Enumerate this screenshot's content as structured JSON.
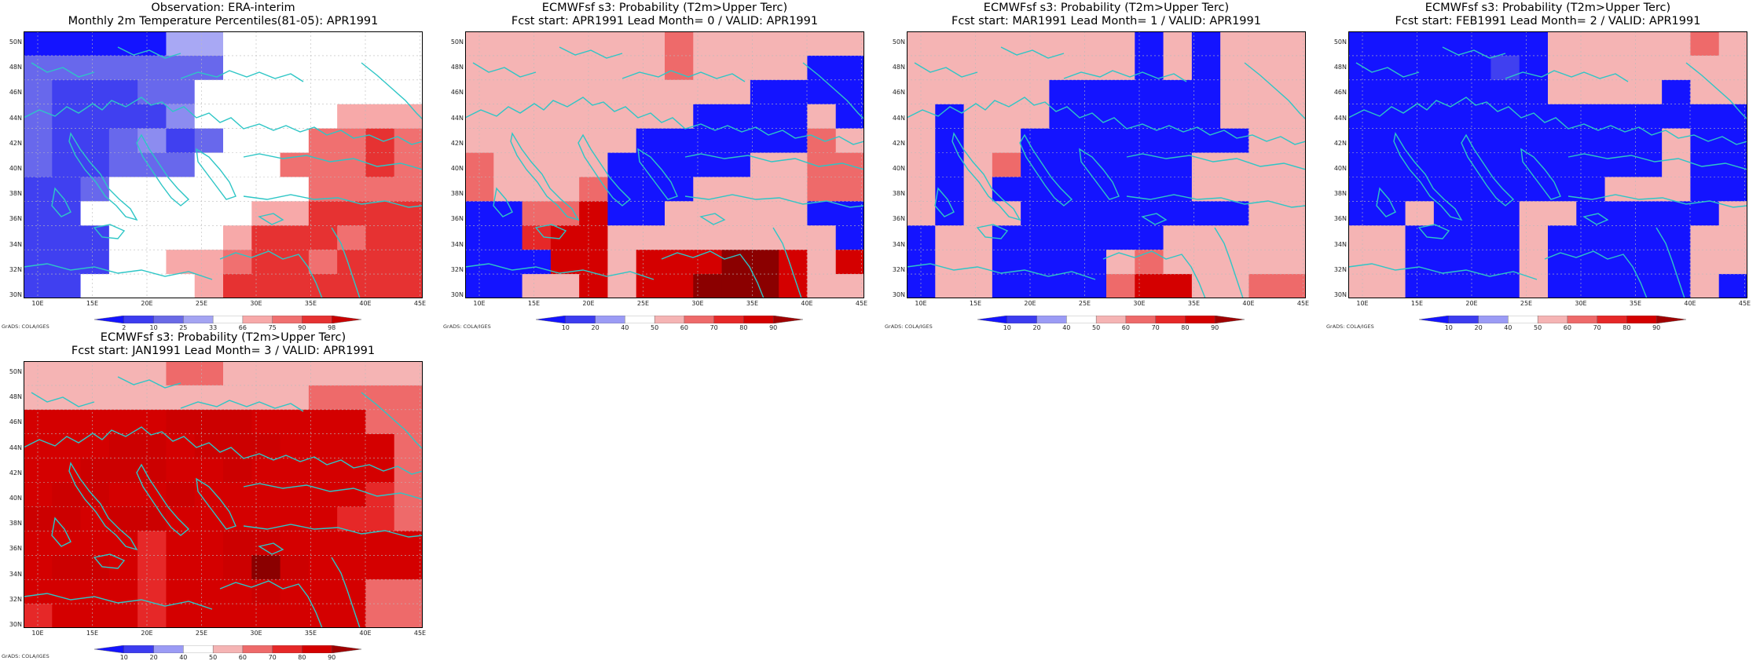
{
  "panels": [
    {
      "title1": "Observation: ERA-interim",
      "title2": "Monthly 2m Temperature Percentiles(81-05): APR1991",
      "colorbar": {
        "labels": [
          "2",
          "10",
          "25",
          "33",
          "66",
          "75",
          "90",
          "98"
        ],
        "colors": [
          "#1414ff",
          "#3c3cf0",
          "#6a6ae6",
          "#a4a4f2",
          "#ffffff",
          "#f7a9a9",
          "#f07070",
          "#e63232",
          "#c80000"
        ]
      },
      "grid": [
        "B B B B B A A F F F F F F F",
        "D D D D D D D F F F F F F F",
        "D C C C D D F F F F F F F F",
        "D C C C C E F F F F F G H H",
        "D C C D E C D F F F I I J I",
        "D C C D D D F F F I I I J I",
        "C C D F F F F F F F I I I I",
        "C C F F F F F F G G J J J J",
        "C C C F F F F G J J J I J J",
        "C C C F F G G I J J I J J J",
        "C C F F F F G J J J J J J J"
      ]
    },
    {
      "title1": "ECMWFsf s3: Probability (T2m>Upper Terc)",
      "title2": "Fcst start: APR1991   Lead Month= 0 / VALID: APR1991",
      "colorbar": {
        "labels": [
          "10",
          "20",
          "40",
          "50",
          "60",
          "70",
          "80",
          "90"
        ],
        "colors": [
          "#1414ff",
          "#3c3cf0",
          "#9b9bf5",
          "#ffffff",
          "#f5b4b4",
          "#ee6a6a",
          "#e62828",
          "#d40000",
          "#a00000"
        ]
      },
      "grid": [
        "F F F F F F F H F F F F F F",
        "F F F F F F F H F F F F B B",
        "F F F F F F F F F F B B B B",
        "F F F F F F F F B B B B F B",
        "F F F F F F B B B B B B H F",
        "H F F F F B B B B B F F H H",
        "H F F F H B B B F F F F H H",
        "B B H H J B B F F F F F B B",
        "B B I J J F F F F F F F F B",
        "B B B J J F J J J L L J F J",
        "B B F F J F J J L L L J F F"
      ]
    },
    {
      "title1": "ECMWFsf s3: Probability (T2m>Upper Terc)",
      "title2": "Fcst start: MAR1991   Lead Month= 1 / VALID: APR1991",
      "colorbar": {
        "labels": [
          "10",
          "20",
          "40",
          "50",
          "60",
          "70",
          "80",
          "90"
        ],
        "colors": [
          "#1414ff",
          "#3c3cf0",
          "#9b9bf5",
          "#ffffff",
          "#f5b4b4",
          "#ee6a6a",
          "#e62828",
          "#d40000",
          "#a00000"
        ]
      },
      "grid": [
        "F F F F F F F F B F B F F F",
        "F F F F F F F F B F B F F F",
        "F F F F F B B B B B B F F F",
        "F B F F F B B B B B B F F F",
        "F B F F B B B B B B B B F F",
        "F B F H B B B B B B F F F F",
        "F B F B B B B B B B F F F F",
        "F B F F B B B B B B B B F F",
        "B F F B B B B B B F F F F F",
        "B F F B B B B F H F F F F F",
        "B F F B B B B H J J F F H H"
      ]
    },
    {
      "title1": "ECMWFsf s3: Probability (T2m>Upper Terc)",
      "title2": "Fcst start: FEB1991   Lead Month= 2 / VALID: APR1991",
      "colorbar": {
        "labels": [
          "10",
          "20",
          "40",
          "50",
          "60",
          "70",
          "80",
          "90"
        ],
        "colors": [
          "#1414ff",
          "#3c3cf0",
          "#9b9bf5",
          "#ffffff",
          "#f5b4b4",
          "#ee6a6a",
          "#e62828",
          "#d40000",
          "#a00000"
        ]
      },
      "grid": [
        "B B B B B B B F F F F F H F",
        "B B B B B C B F F F F F F F",
        "B B B B B B B F F F F B F F",
        "B B B B B B B B B B B B B B",
        "B B B B B B B B B B B F B B",
        "B B B B B B B B B B B F B B",
        "B B B B B B B B B F F F B B",
        "B B F B B B F F B B B B B F",
        "F F B B B B F B B B B B F F",
        "F F B B B B F B B B B B F F",
        "F F B B B B F B B B B B F B"
      ]
    },
    {
      "title1": "ECMWFsf s3: Probability (T2m>Upper Terc)",
      "title2": "Fcst start: JAN1991   Lead Month= 3 / VALID: APR1991",
      "colorbar": {
        "labels": [
          "10",
          "20",
          "40",
          "50",
          "60",
          "70",
          "80",
          "90"
        ],
        "colors": [
          "#1414ff",
          "#3c3cf0",
          "#9b9bf5",
          "#ffffff",
          "#f5b4b4",
          "#ee6a6a",
          "#e62828",
          "#d40000",
          "#a00000"
        ]
      },
      "grid": [
        "F F F F F H H F F F F F F F",
        "F F F F F F F F F F H H H H",
        "J J J J J K K K J J J J H H",
        "J J J K K J K K K J J J J H",
        "J J K K K J J K J J J J J H",
        "J K K J J K J J J J J J I H",
        "K K J K K J J J J J J I I H",
        "J J J J I J J K K J J J J J",
        "J K K J I J J K L K J J J J",
        "J J J J I J J J K J J J H H",
        "I J J J I J J J J J J J H H"
      ]
    }
  ],
  "axes": {
    "lat_labels": [
      "50N",
      "48N",
      "46N",
      "44N",
      "42N",
      "40N",
      "38N",
      "36N",
      "34N",
      "32N",
      "30N"
    ],
    "lon_labels": [
      "10E",
      "15E",
      "20E",
      "25E",
      "30E",
      "35E",
      "40E",
      "45E"
    ]
  },
  "credit": "GrADS: COLA/IGES"
}
